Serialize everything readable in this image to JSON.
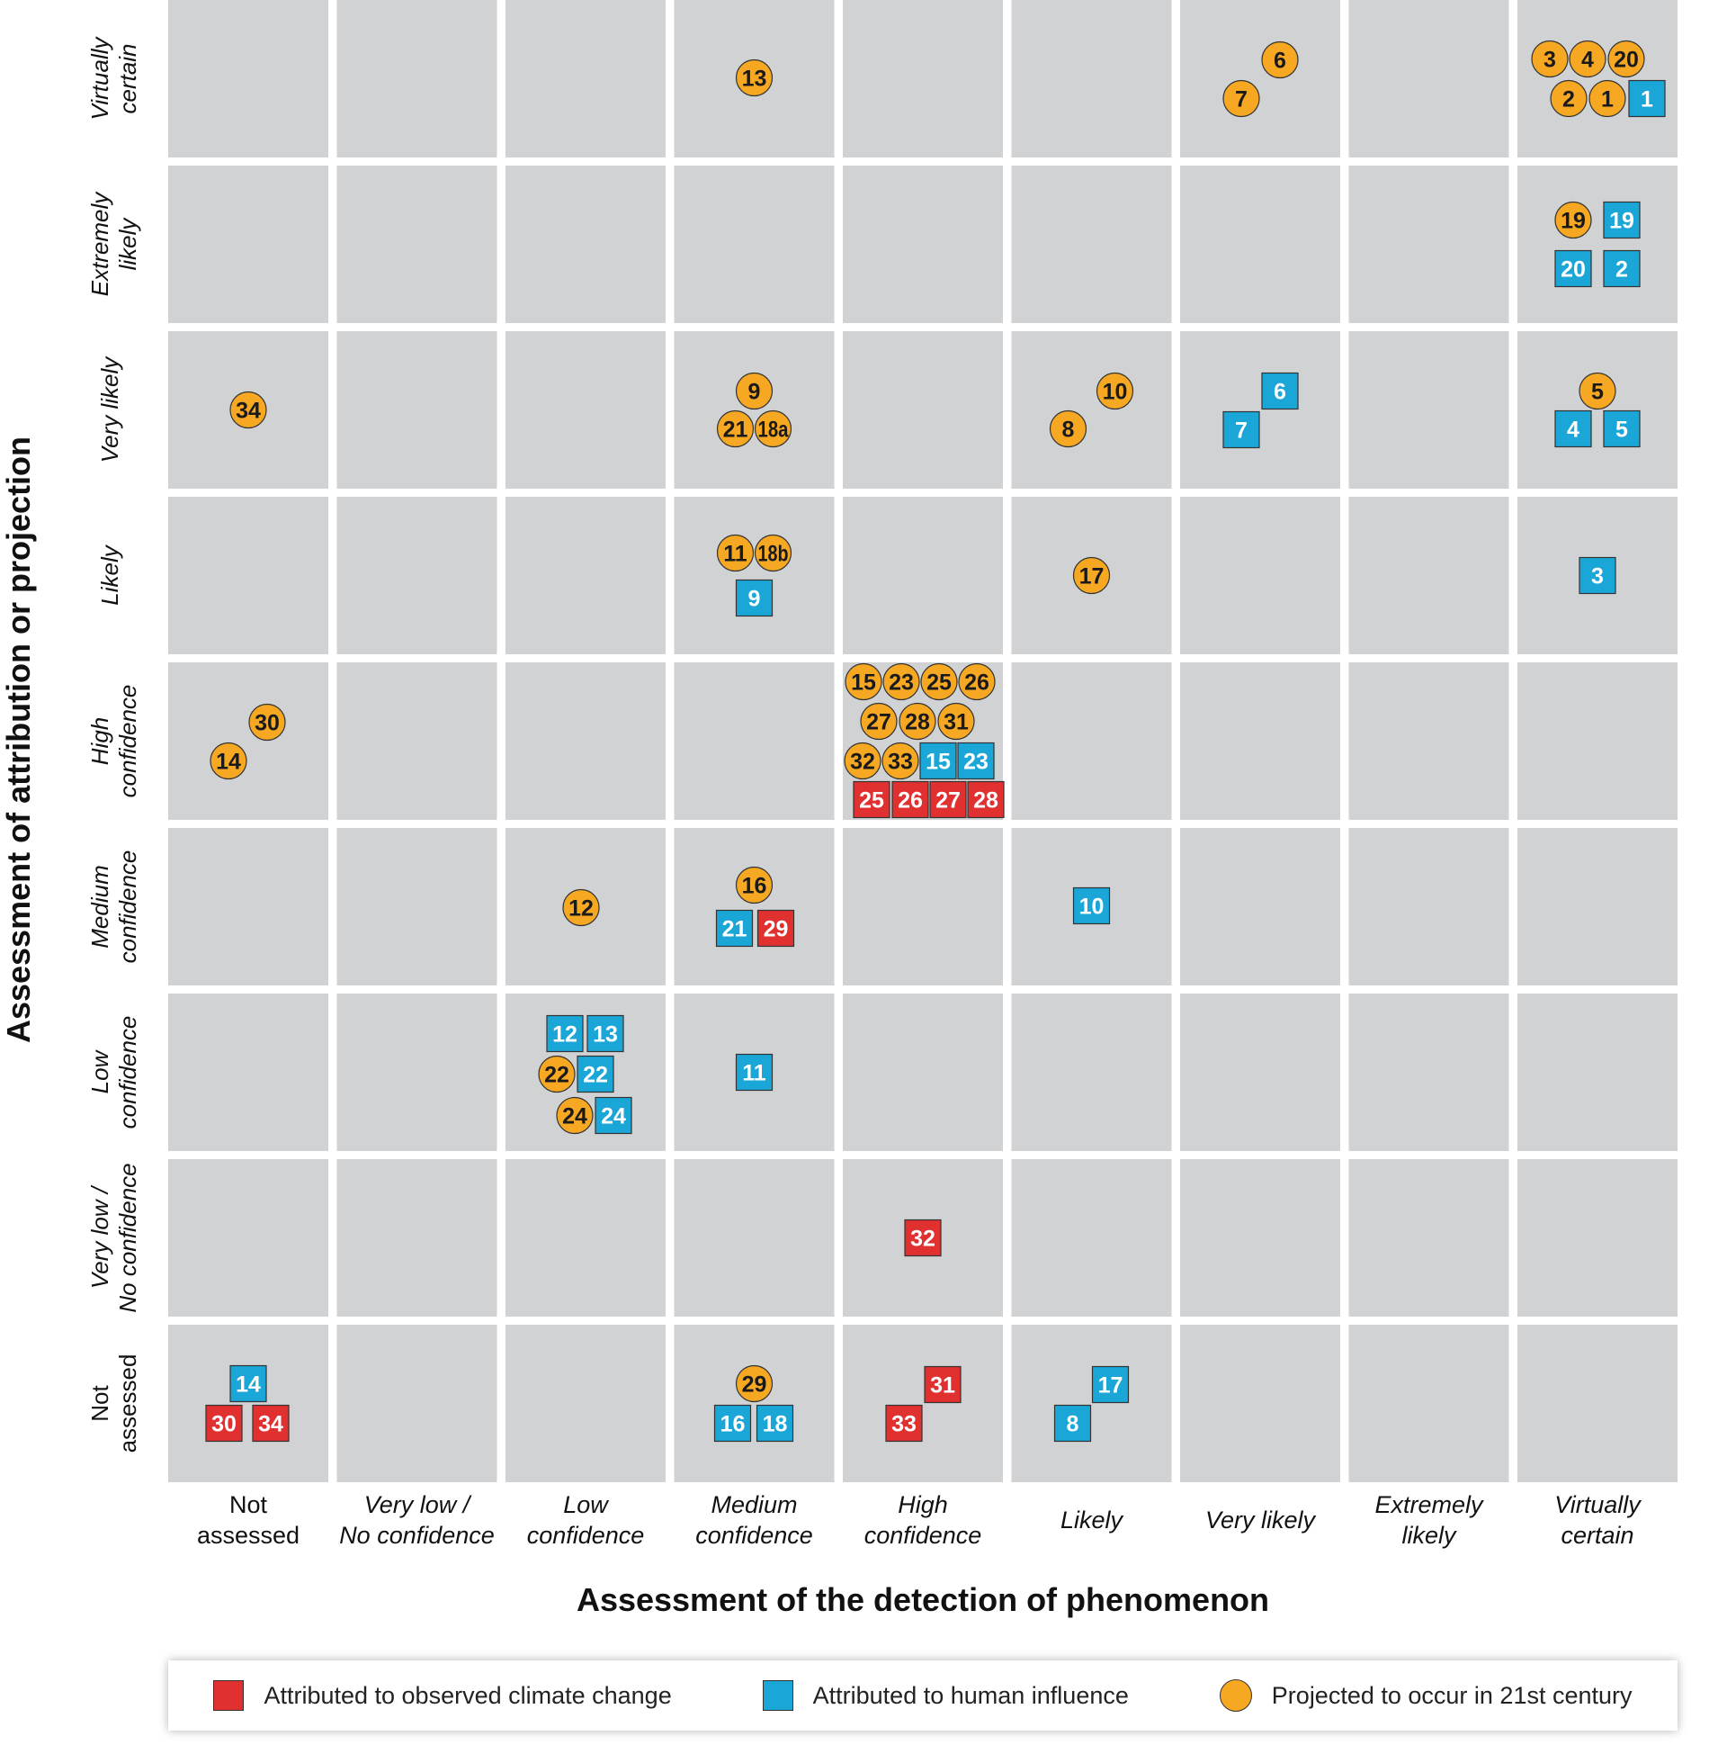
{
  "chart_data": {
    "type": "matrix-scatter",
    "x_axis": {
      "title": "Assessment of the detection of phenomenon",
      "categories": [
        [
          "Not",
          "assessed"
        ],
        [
          "Very low /",
          "No confidence"
        ],
        [
          "Low",
          "confidence"
        ],
        [
          "Medium",
          "confidence"
        ],
        [
          "High",
          "confidence"
        ],
        [
          "Likely"
        ],
        [
          "Very likely"
        ],
        [
          "Extremely",
          "likely"
        ],
        [
          "Virtually",
          "certain"
        ]
      ],
      "italic": [
        false,
        true,
        true,
        true,
        true,
        true,
        true,
        true,
        true
      ]
    },
    "y_axis": {
      "title": "Assessment of attribution or projection",
      "categories_top_to_bottom": [
        [
          "Virtually",
          "certain"
        ],
        [
          "Extremely",
          "likely"
        ],
        [
          "Very likely"
        ],
        [
          "Likely"
        ],
        [
          "High",
          "confidence"
        ],
        [
          "Medium",
          "confidence"
        ],
        [
          "Low",
          "confidence"
        ],
        [
          "Very low /",
          "No confidence"
        ],
        [
          "Not",
          "assessed"
        ]
      ],
      "italic": [
        true,
        true,
        true,
        true,
        true,
        true,
        true,
        true,
        false
      ]
    },
    "legend": [
      {
        "key": "observed",
        "label": "Attributed to observed climate change",
        "shape": "square",
        "color": "#e03030"
      },
      {
        "key": "human",
        "label": "Attributed to human influence",
        "shape": "square",
        "color": "#1aa6d6"
      },
      {
        "key": "projected",
        "label": "Projected to occur in 21st century",
        "shape": "circle",
        "color": "#f7a823"
      }
    ],
    "colors": {
      "cell": "#d1d2d4",
      "grid_gap": "#ffffff"
    },
    "points": [
      {
        "label": "13",
        "type": "projected",
        "detection": "Medium confidence",
        "attribution": "Virtually certain"
      },
      {
        "label": "6",
        "type": "projected",
        "detection": "Very likely",
        "attribution": "Virtually certain"
      },
      {
        "label": "7",
        "type": "projected",
        "detection": "Very likely",
        "attribution": "Virtually certain"
      },
      {
        "label": "3",
        "type": "projected",
        "detection": "Virtually certain",
        "attribution": "Virtually certain"
      },
      {
        "label": "4",
        "type": "projected",
        "detection": "Virtually certain",
        "attribution": "Virtually certain"
      },
      {
        "label": "20",
        "type": "projected",
        "detection": "Virtually certain",
        "attribution": "Virtually certain"
      },
      {
        "label": "2",
        "type": "projected",
        "detection": "Virtually certain",
        "attribution": "Virtually certain"
      },
      {
        "label": "1",
        "type": "projected",
        "detection": "Virtually certain",
        "attribution": "Virtually certain"
      },
      {
        "label": "1",
        "type": "human",
        "detection": "Virtually certain",
        "attribution": "Virtually certain"
      },
      {
        "label": "19",
        "type": "projected",
        "detection": "Virtually certain",
        "attribution": "Extremely likely"
      },
      {
        "label": "19",
        "type": "human",
        "detection": "Virtually certain",
        "attribution": "Extremely likely"
      },
      {
        "label": "20",
        "type": "human",
        "detection": "Virtually certain",
        "attribution": "Extremely likely"
      },
      {
        "label": "2",
        "type": "human",
        "detection": "Virtually certain",
        "attribution": "Extremely likely"
      },
      {
        "label": "34",
        "type": "projected",
        "detection": "Not assessed",
        "attribution": "Very likely"
      },
      {
        "label": "9",
        "type": "projected",
        "detection": "Medium confidence",
        "attribution": "Very likely"
      },
      {
        "label": "21",
        "type": "projected",
        "detection": "Medium confidence",
        "attribution": "Very likely"
      },
      {
        "label": "18a",
        "type": "projected",
        "detection": "Medium confidence",
        "attribution": "Very likely"
      },
      {
        "label": "10",
        "type": "projected",
        "detection": "Likely",
        "attribution": "Very likely"
      },
      {
        "label": "8",
        "type": "projected",
        "detection": "Likely",
        "attribution": "Very likely"
      },
      {
        "label": "6",
        "type": "human",
        "detection": "Very likely",
        "attribution": "Very likely"
      },
      {
        "label": "7",
        "type": "human",
        "detection": "Very likely",
        "attribution": "Very likely"
      },
      {
        "label": "5",
        "type": "projected",
        "detection": "Virtually certain",
        "attribution": "Very likely"
      },
      {
        "label": "4",
        "type": "human",
        "detection": "Virtually certain",
        "attribution": "Very likely"
      },
      {
        "label": "5",
        "type": "human",
        "detection": "Virtually certain",
        "attribution": "Very likely"
      },
      {
        "label": "11",
        "type": "projected",
        "detection": "Medium confidence",
        "attribution": "Likely"
      },
      {
        "label": "18b",
        "type": "projected",
        "detection": "Medium confidence",
        "attribution": "Likely"
      },
      {
        "label": "9",
        "type": "human",
        "detection": "Medium confidence",
        "attribution": "Likely"
      },
      {
        "label": "17",
        "type": "projected",
        "detection": "Likely",
        "attribution": "Likely"
      },
      {
        "label": "3",
        "type": "human",
        "detection": "Virtually certain",
        "attribution": "Likely"
      },
      {
        "label": "30",
        "type": "projected",
        "detection": "Not assessed",
        "attribution": "High confidence"
      },
      {
        "label": "14",
        "type": "projected",
        "detection": "Not assessed",
        "attribution": "High confidence"
      },
      {
        "label": "15",
        "type": "projected",
        "detection": "High confidence",
        "attribution": "High confidence"
      },
      {
        "label": "23",
        "type": "projected",
        "detection": "High confidence",
        "attribution": "High confidence"
      },
      {
        "label": "25",
        "type": "projected",
        "detection": "High confidence",
        "attribution": "High confidence"
      },
      {
        "label": "26",
        "type": "projected",
        "detection": "High confidence",
        "attribution": "High confidence"
      },
      {
        "label": "27",
        "type": "projected",
        "detection": "High confidence",
        "attribution": "High confidence"
      },
      {
        "label": "28",
        "type": "projected",
        "detection": "High confidence",
        "attribution": "High confidence"
      },
      {
        "label": "31",
        "type": "projected",
        "detection": "High confidence",
        "attribution": "High confidence"
      },
      {
        "label": "32",
        "type": "projected",
        "detection": "High confidence",
        "attribution": "High confidence"
      },
      {
        "label": "33",
        "type": "projected",
        "detection": "High confidence",
        "attribution": "High confidence"
      },
      {
        "label": "15",
        "type": "human",
        "detection": "High confidence",
        "attribution": "High confidence"
      },
      {
        "label": "23",
        "type": "human",
        "detection": "High confidence",
        "attribution": "High confidence"
      },
      {
        "label": "25",
        "type": "observed",
        "detection": "High confidence",
        "attribution": "High confidence"
      },
      {
        "label": "26",
        "type": "observed",
        "detection": "High confidence",
        "attribution": "High confidence"
      },
      {
        "label": "27",
        "type": "observed",
        "detection": "High confidence",
        "attribution": "High confidence"
      },
      {
        "label": "28",
        "type": "observed",
        "detection": "High confidence",
        "attribution": "High confidence"
      },
      {
        "label": "12",
        "type": "projected",
        "detection": "Low confidence",
        "attribution": "Medium confidence"
      },
      {
        "label": "16",
        "type": "projected",
        "detection": "Medium confidence",
        "attribution": "Medium confidence"
      },
      {
        "label": "21",
        "type": "human",
        "detection": "Medium confidence",
        "attribution": "Medium confidence"
      },
      {
        "label": "29",
        "type": "observed",
        "detection": "Medium confidence",
        "attribution": "Medium confidence"
      },
      {
        "label": "10",
        "type": "human",
        "detection": "Likely",
        "attribution": "Medium confidence"
      },
      {
        "label": "12",
        "type": "human",
        "detection": "Low confidence",
        "attribution": "Low confidence"
      },
      {
        "label": "13",
        "type": "human",
        "detection": "Low confidence",
        "attribution": "Low confidence"
      },
      {
        "label": "22",
        "type": "projected",
        "detection": "Low confidence",
        "attribution": "Low confidence"
      },
      {
        "label": "22",
        "type": "human",
        "detection": "Low confidence",
        "attribution": "Low confidence"
      },
      {
        "label": "24",
        "type": "projected",
        "detection": "Low confidence",
        "attribution": "Low confidence"
      },
      {
        "label": "24",
        "type": "human",
        "detection": "Low confidence",
        "attribution": "Low confidence"
      },
      {
        "label": "11",
        "type": "human",
        "detection": "Medium confidence",
        "attribution": "Low confidence"
      },
      {
        "label": "32",
        "type": "observed",
        "detection": "High confidence",
        "attribution": "Very low / No confidence"
      },
      {
        "label": "14",
        "type": "human",
        "detection": "Not assessed",
        "attribution": "Not assessed"
      },
      {
        "label": "30",
        "type": "observed",
        "detection": "Not assessed",
        "attribution": "Not assessed"
      },
      {
        "label": "34",
        "type": "observed",
        "detection": "Not assessed",
        "attribution": "Not assessed"
      },
      {
        "label": "29",
        "type": "projected",
        "detection": "Medium confidence",
        "attribution": "Not assessed"
      },
      {
        "label": "16",
        "type": "human",
        "detection": "Medium confidence",
        "attribution": "Not assessed"
      },
      {
        "label": "18",
        "type": "human",
        "detection": "Medium confidence",
        "attribution": "Not assessed"
      },
      {
        "label": "31",
        "type": "observed",
        "detection": "High confidence",
        "attribution": "Not assessed"
      },
      {
        "label": "33",
        "type": "observed",
        "detection": "High confidence",
        "attribution": "Not assessed"
      },
      {
        "label": "17",
        "type": "human",
        "detection": "Likely",
        "attribution": "Not assessed"
      },
      {
        "label": "8",
        "type": "human",
        "detection": "Likely",
        "attribution": "Not assessed"
      }
    ]
  }
}
